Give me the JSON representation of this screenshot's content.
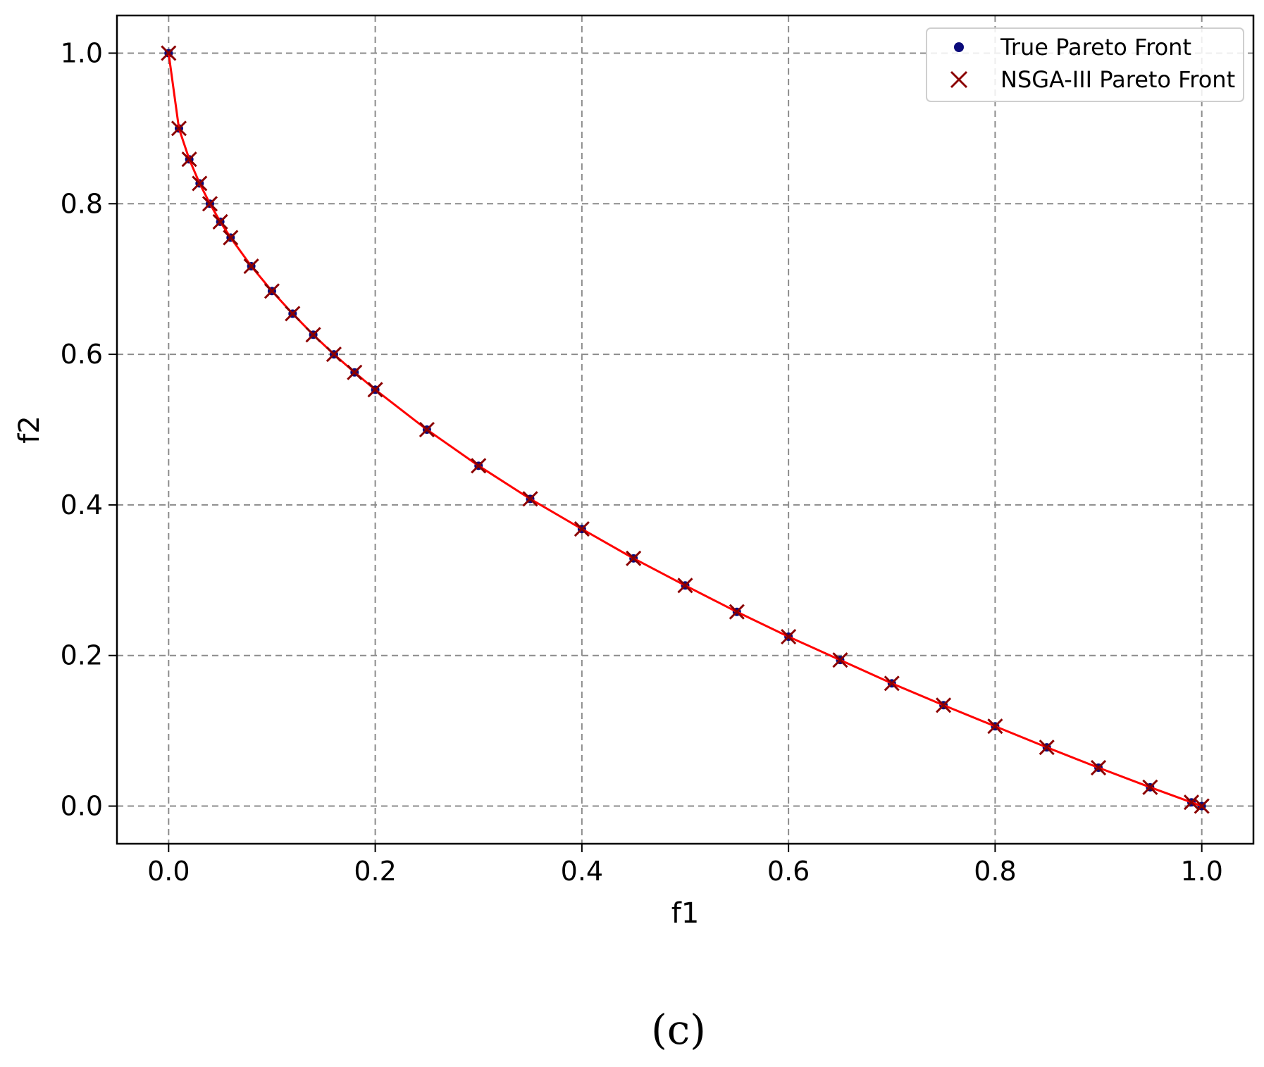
{
  "chart_data": {
    "type": "scatter",
    "title": "",
    "xlabel": "f1",
    "ylabel": "f2",
    "xlim": [
      -0.05,
      1.05
    ],
    "ylim": [
      -0.05,
      1.05
    ],
    "xticks": [
      "0.0",
      "0.2",
      "0.4",
      "0.6",
      "0.8",
      "1.0"
    ],
    "yticks": [
      "0.0",
      "0.2",
      "0.4",
      "0.6",
      "0.8",
      "1.0"
    ],
    "grid": true,
    "legend_position": "top-right",
    "caption": "(c)",
    "colors": {
      "true_front": "#0b0b7a",
      "nsga_markers": "#8b0000",
      "nsga_line": "#ff0000",
      "grid": "#8c8c8c"
    },
    "series": [
      {
        "name": "True Pareto Front",
        "marker": "dot",
        "x": [
          0.0,
          0.01,
          0.02,
          0.03,
          0.04,
          0.05,
          0.06,
          0.08,
          0.1,
          0.12,
          0.14,
          0.16,
          0.18,
          0.2,
          0.25,
          0.3,
          0.35,
          0.4,
          0.45,
          0.5,
          0.55,
          0.6,
          0.65,
          0.7,
          0.75,
          0.8,
          0.85,
          0.9,
          0.95,
          0.99,
          1.0
        ],
        "y": [
          1.0,
          0.9,
          0.859,
          0.827,
          0.8,
          0.776,
          0.755,
          0.717,
          0.684,
          0.654,
          0.626,
          0.6,
          0.576,
          0.553,
          0.5,
          0.452,
          0.408,
          0.368,
          0.329,
          0.293,
          0.258,
          0.225,
          0.194,
          0.163,
          0.134,
          0.106,
          0.078,
          0.051,
          0.025,
          0.005,
          0.0
        ]
      },
      {
        "name": "NSGA-III Pareto Front",
        "marker": "x",
        "x": [
          0.0,
          0.01,
          0.02,
          0.03,
          0.04,
          0.05,
          0.06,
          0.08,
          0.1,
          0.12,
          0.14,
          0.16,
          0.18,
          0.2,
          0.25,
          0.3,
          0.35,
          0.4,
          0.45,
          0.5,
          0.55,
          0.6,
          0.65,
          0.7,
          0.75,
          0.8,
          0.85,
          0.9,
          0.95,
          0.99,
          1.0
        ],
        "y": [
          1.0,
          0.9,
          0.859,
          0.827,
          0.8,
          0.776,
          0.755,
          0.717,
          0.684,
          0.654,
          0.626,
          0.6,
          0.576,
          0.553,
          0.5,
          0.452,
          0.408,
          0.368,
          0.329,
          0.293,
          0.258,
          0.225,
          0.194,
          0.163,
          0.134,
          0.106,
          0.078,
          0.051,
          0.025,
          0.005,
          0.0
        ]
      }
    ]
  }
}
